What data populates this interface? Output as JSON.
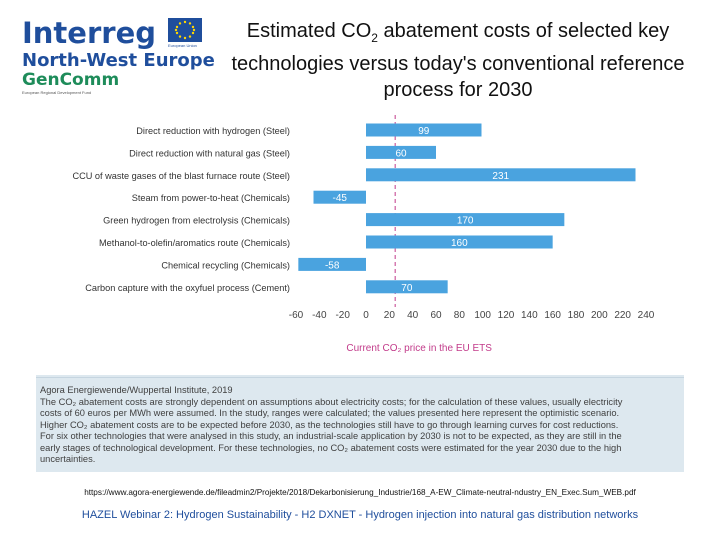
{
  "logo": {
    "interreg": "Interreg",
    "region": "North-West Europe",
    "project": "GenComm",
    "eu_caption": "European Union",
    "fund": "European Regional Development Fund",
    "brand_blue": "#1f4e9c",
    "brand_green": "#1e8c5a"
  },
  "title": {
    "before": "Estimated CO",
    "sub": "2",
    "after": " abatement costs of selected key technologies versus today's conventional reference process for 2030"
  },
  "chart_data": {
    "type": "bar",
    "orientation": "horizontal",
    "categories": [
      "Direct reduction with hydrogen (Steel)",
      "Direct reduction with natural gas (Steel)",
      "CCU of waste gases of the blast furnace route (Steel)",
      "Steam from power-to-heat (Chemicals)",
      "Green hydrogen from electrolysis (Chemicals)",
      "Methanol-to-olefin/aromatics route (Chemicals)",
      "Chemical recycling (Chemicals)",
      "Carbon capture with the oxyfuel process (Cement)"
    ],
    "values": [
      99,
      60,
      231,
      -45,
      170,
      160,
      -58,
      70
    ],
    "data_labels": [
      "99",
      "60",
      "231",
      "-45",
      "170",
      "160",
      "-58",
      "70"
    ],
    "xlim": [
      -60,
      240
    ],
    "xticks": [
      "-60",
      "-40",
      "-20",
      "0",
      "20",
      "40",
      "60",
      "80",
      "100",
      "120",
      "140",
      "160",
      "180",
      "200",
      "220",
      "240"
    ],
    "reference_line": {
      "value": 25,
      "label": "Current CO₂ price in the EU ETS",
      "color": "#c23b8a"
    },
    "bar_color": "#4aa3df",
    "label_color": "#ffffff"
  },
  "source_text": [
    "Agora Energiewende/Wuppertal Institute, 2019",
    "The CO₂ abatement costs are strongly dependent on assumptions about electricity costs; for the calculation of these values, usually electricity",
    "costs of 60 euros per MWh were assumed. In the study, ranges were calculated; the values presented here represent the optimistic scenario.",
    "Higher CO₂ abatement costs are to be expected before 2030, as the technologies still have to go through learning curves for cost reductions.",
    "For six other technologies that were analysed in this study, an industrial-scale application by 2030 is not to be expected, as they are still in the",
    "early stages of technological development. For these technologies, no CO₂ abatement costs were estimated for the year 2030 due to the high",
    "uncertainties."
  ],
  "url": "https://www.agora-energiewende.de/fileadmin2/Projekte/2018/Dekarbonisierung_Industrie/168_A-EW_Climate-neutral-ndustry_EN_Exec.Sum_WEB.pdf",
  "footer": "HAZEL Webinar 2: Hydrogen Sustainability - H2 DXNET - Hydrogen injection into natural gas distribution networks"
}
